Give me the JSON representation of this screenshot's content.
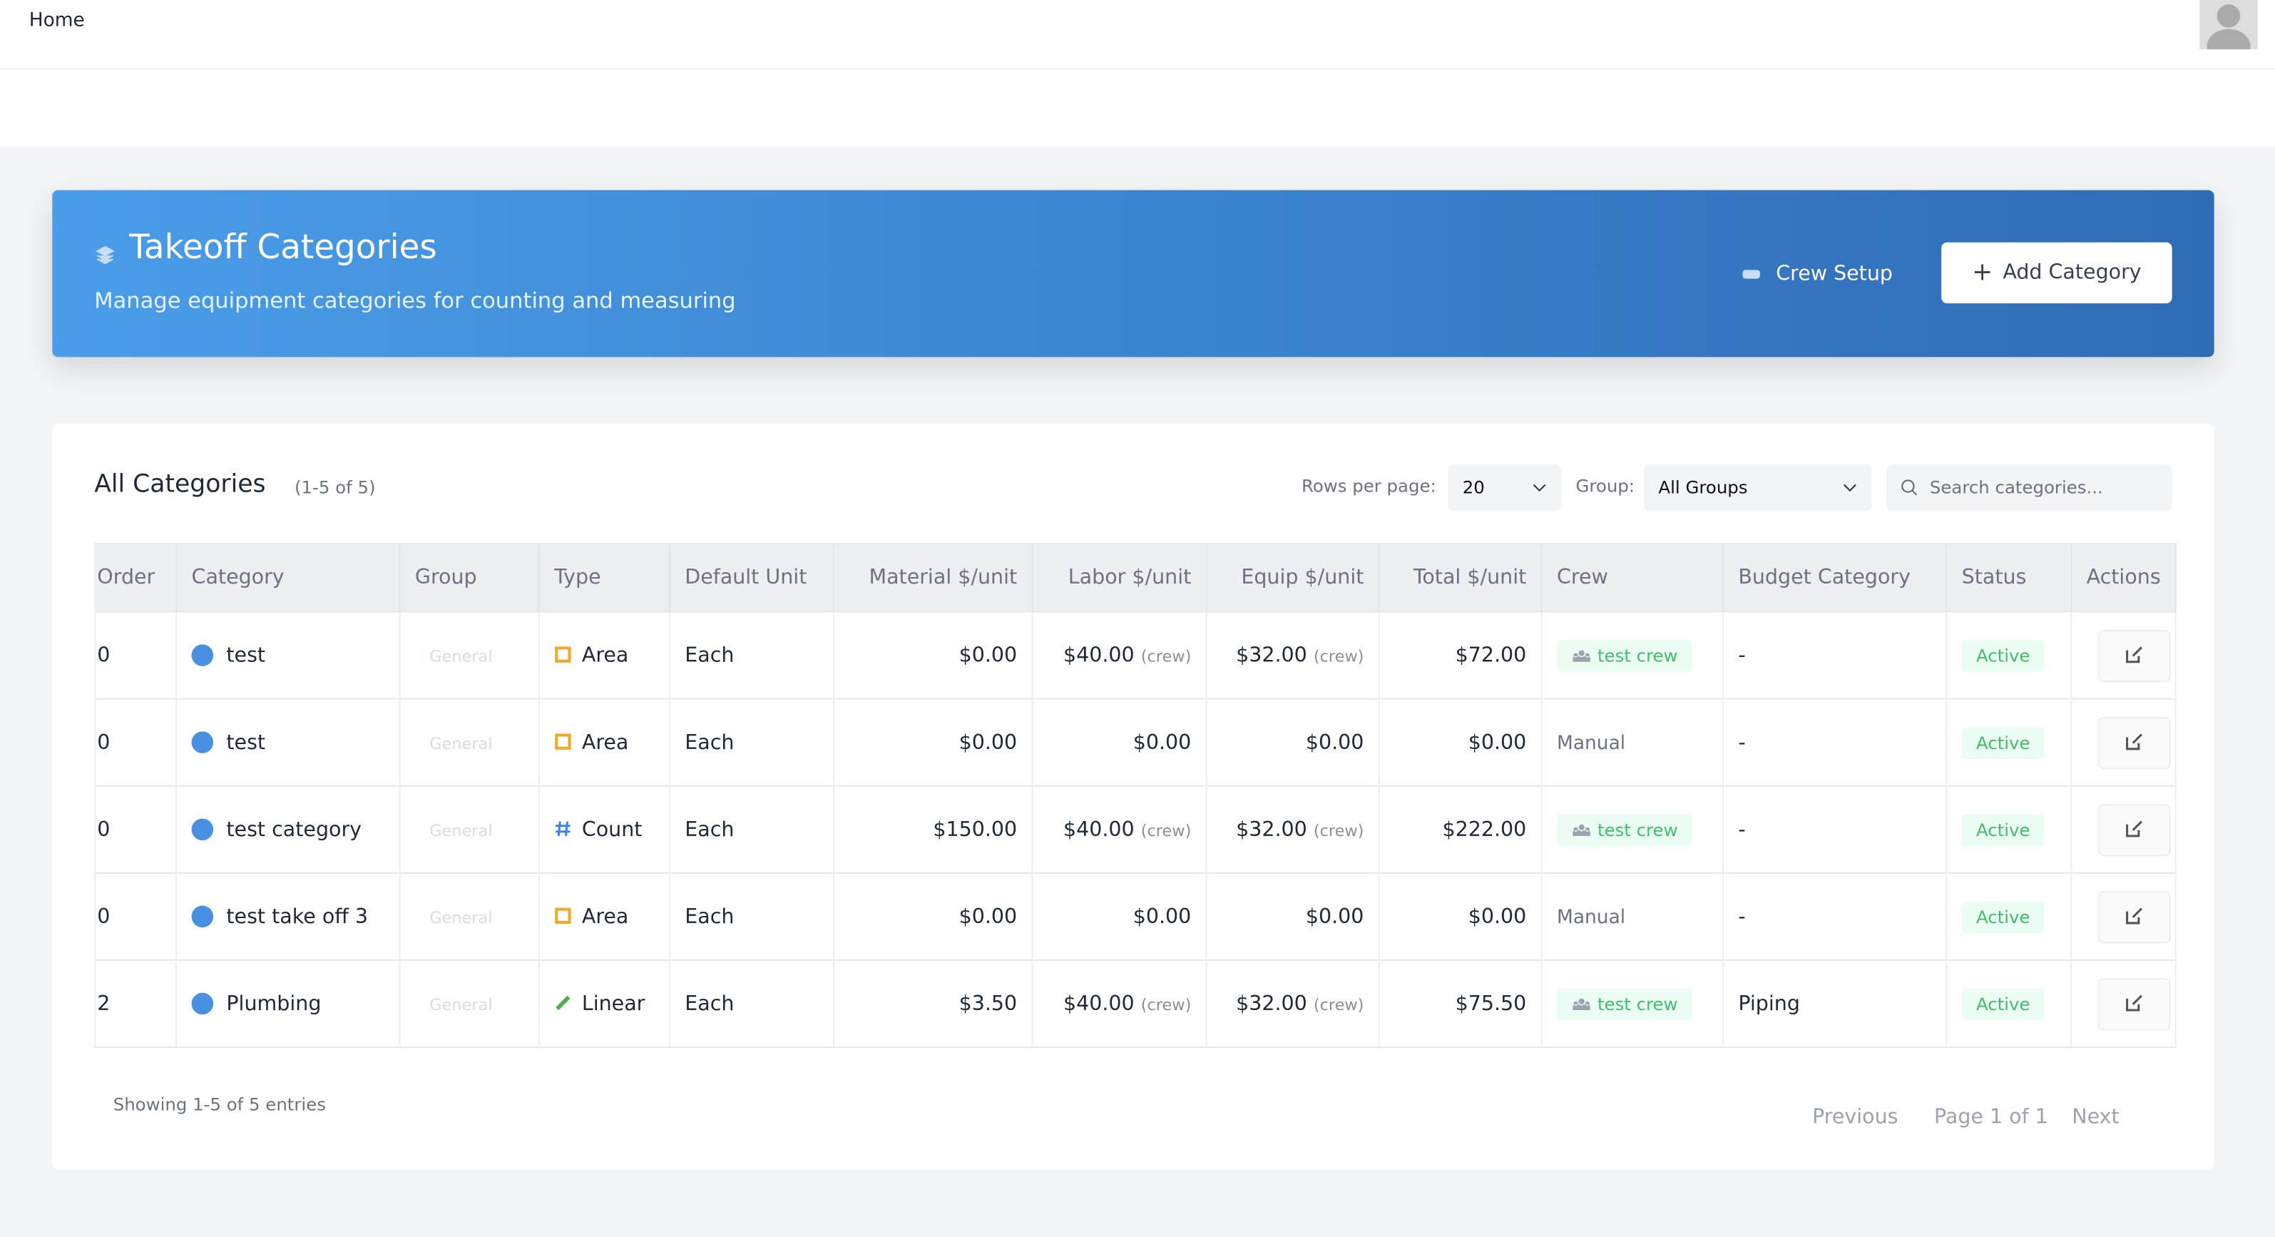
{
  "header": {
    "breadcrumb": "Home"
  },
  "banner": {
    "title": "Takeoff Categories",
    "subtitle": "Manage equipment categories for counting and measuring",
    "crew_button": "Crew Setup",
    "add_button": "Add Category"
  },
  "card": {
    "title": "All Categories",
    "count": "(1-5 of 5)",
    "rows_label": "Rows per page:",
    "rows_value": "20",
    "group_label": "Group:",
    "group_value": "All Groups",
    "search_placeholder": "Search categories..."
  },
  "table": {
    "columns": [
      "Order",
      "Category",
      "Group",
      "Type",
      "Default Unit",
      "Material $/unit",
      "Labor $/unit",
      "Equip $/unit",
      "Total $/unit",
      "Crew",
      "Budget Category",
      "Status",
      "Actions"
    ],
    "rows": [
      {
        "order": "0",
        "category": "test",
        "group": "General",
        "type": "Area",
        "icon": "square",
        "icon_color": "#f5a623",
        "unit": "Each",
        "material": "$0.00",
        "labor": "$40.00",
        "labor_note": "(crew)",
        "equip": "$32.00",
        "equip_note": "(crew)",
        "total": "$72.00",
        "crew_badge": "test crew",
        "budget": "-",
        "status": "Active"
      },
      {
        "order": "0",
        "category": "test",
        "group": "General",
        "type": "Area",
        "icon": "square",
        "icon_color": "#f5a623",
        "unit": "Each",
        "material": "$0.00",
        "labor": "$0.00",
        "equip": "$0.00",
        "total": "$0.00",
        "crew": "Manual",
        "budget": "-",
        "status": "Active"
      },
      {
        "order": "0",
        "category": "test category",
        "group": "General",
        "type": "Count",
        "icon": "hash",
        "icon_color": "#3b82f6",
        "unit": "Each",
        "material": "$150.00",
        "labor": "$40.00",
        "labor_note": "(crew)",
        "equip": "$32.00",
        "equip_note": "(crew)",
        "total": "$222.00",
        "crew_badge": "test crew",
        "budget": "-",
        "status": "Active"
      },
      {
        "order": "0",
        "category": "test take off 3",
        "group": "General",
        "type": "Area",
        "icon": "square",
        "icon_color": "#f5a623",
        "unit": "Each",
        "material": "$0.00",
        "labor": "$0.00",
        "equip": "$0.00",
        "total": "$0.00",
        "crew": "Manual",
        "budget": "-",
        "status": "Active"
      },
      {
        "order": "2",
        "category": "Plumbing",
        "group": "General",
        "type": "Linear",
        "icon": "ruler",
        "icon_color": "#4caf50",
        "unit": "Each",
        "material": "$3.50",
        "labor": "$40.00",
        "labor_note": "(crew)",
        "equip": "$32.00",
        "equip_note": "(crew)",
        "total": "$75.50",
        "crew_badge": "test crew",
        "budget": "Piping",
        "status": "Active"
      }
    ]
  },
  "footer": {
    "showing": "Showing 1-5 of 5 entries",
    "previous": "Previous",
    "page": "Page 1 of 1",
    "next": "Next"
  }
}
